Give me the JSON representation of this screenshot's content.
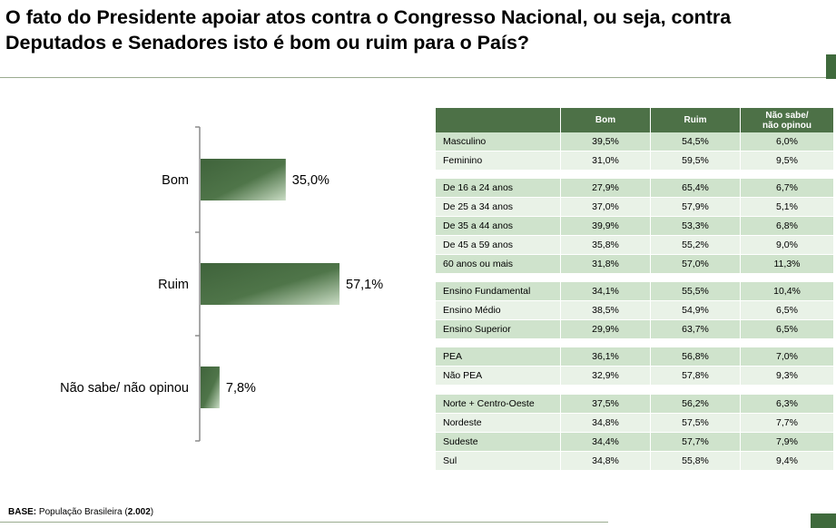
{
  "title": {
    "line1": "O fato do Presidente apoiar atos contra o Congresso Nacional, ou seja, contra",
    "line2": "Deputados e Senadores isto é bom ou ruim para o País?"
  },
  "chart_data": {
    "type": "bar",
    "orientation": "horizontal",
    "categories": [
      "Bom",
      "Ruim",
      "Não sabe/ não opinou"
    ],
    "values": [
      35.0,
      57.1,
      7.8
    ],
    "value_labels": [
      "35,0%",
      "57,1%",
      "7,8%"
    ],
    "xlim": [
      0,
      100
    ],
    "title": "",
    "xlabel": "",
    "ylabel": "",
    "grid": false,
    "legend": "none",
    "colors": {
      "bar_dark": "#3f633b",
      "bar_light": "#c9dcc4",
      "axis": "#8c8c8c"
    }
  },
  "table": {
    "headers": [
      "",
      "Bom",
      "Ruim",
      "Não sabe/\nnão opinou"
    ],
    "groups": [
      [
        [
          "Masculino",
          "39,5%",
          "54,5%",
          "6,0%"
        ],
        [
          "Feminino",
          "31,0%",
          "59,5%",
          "9,5%"
        ]
      ],
      [
        [
          "De 16 a 24 anos",
          "27,9%",
          "65,4%",
          "6,7%"
        ],
        [
          "De 25 a 34 anos",
          "37,0%",
          "57,9%",
          "5,1%"
        ],
        [
          "De 35 a 44 anos",
          "39,9%",
          "53,3%",
          "6,8%"
        ],
        [
          "De 45 a 59 anos",
          "35,8%",
          "55,2%",
          "9,0%"
        ],
        [
          "60 anos ou mais",
          "31,8%",
          "57,0%",
          "11,3%"
        ]
      ],
      [
        [
          "Ensino Fundamental",
          "34,1%",
          "55,5%",
          "10,4%"
        ],
        [
          "Ensino Médio",
          "38,5%",
          "54,9%",
          "6,5%"
        ],
        [
          "Ensino Superior",
          "29,9%",
          "63,7%",
          "6,5%"
        ]
      ],
      [
        [
          " PEA",
          "36,1%",
          "56,8%",
          "7,0%"
        ],
        [
          " Não PEA",
          "32,9%",
          "57,8%",
          "9,3%"
        ]
      ],
      [
        [
          "Norte + Centro-Oeste",
          "37,5%",
          "56,2%",
          "6,3%"
        ],
        [
          "Nordeste",
          "34,8%",
          "57,5%",
          "7,7%"
        ],
        [
          "Sudeste",
          "34,4%",
          "57,7%",
          "7,9%"
        ],
        [
          "Sul",
          "34,8%",
          "55,8%",
          "9,4%"
        ]
      ]
    ],
    "colors": {
      "header": "#4d7147",
      "row_a": "#cfe3cc",
      "row_b": "#e9f2e7"
    }
  },
  "footer": {
    "base_label": "BASE:",
    "base_text_pre": " População Brasileira (",
    "base_count": "2.002",
    "base_text_post": ")"
  }
}
